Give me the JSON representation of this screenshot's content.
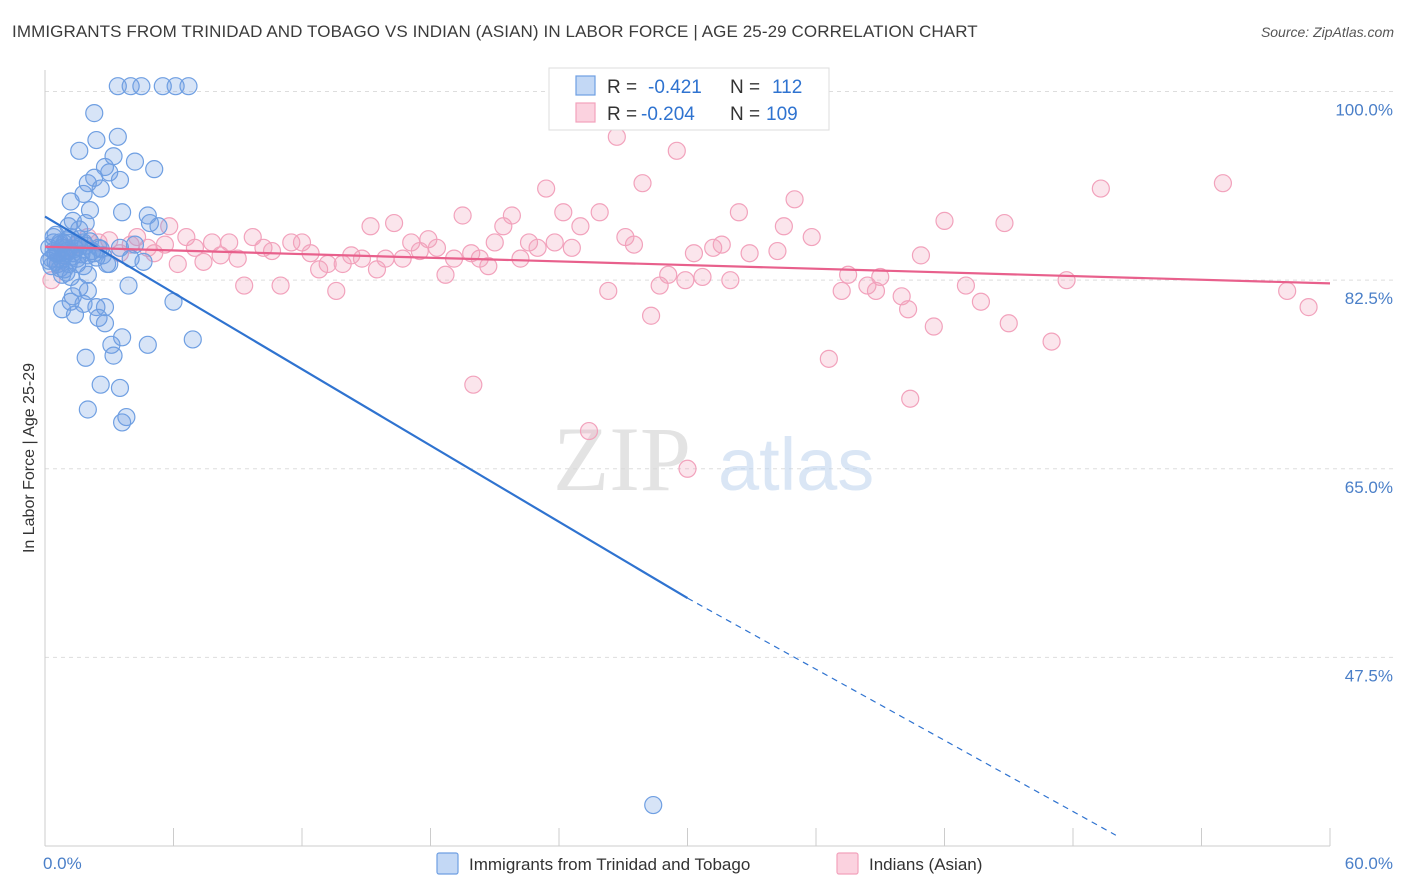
{
  "header": {
    "title": "IMMIGRANTS FROM TRINIDAD AND TOBAGO VS INDIAN (ASIAN) IN LABOR FORCE | AGE 25-29 CORRELATION CHART",
    "source": "Source: ZipAtlas.com"
  },
  "watermark": {
    "zip": "ZIP",
    "atlas": "atlas"
  },
  "stats": {
    "blue": {
      "r_label": "R =",
      "r_value": "-0.421",
      "n_label": "N =",
      "n_value": "112"
    },
    "pink": {
      "r_label": "R =",
      "r_value": "-0.204",
      "n_label": "N =",
      "n_value": "109"
    }
  },
  "chart_data": {
    "type": "scatter",
    "title": "IMMIGRANTS FROM TRINIDAD AND TOBAGO VS INDIAN (ASIAN) IN LABOR FORCE | AGE 25-29 CORRELATION CHART",
    "xlabel": "",
    "ylabel": "In Labor Force | Age 25-29",
    "xlim": [
      0,
      60
    ],
    "ylim": [
      30,
      102
    ],
    "x_tick_labels": [
      "0.0%",
      "60.0%"
    ],
    "y_ticks": [
      47.5,
      65.0,
      82.5,
      100.0
    ],
    "y_tick_labels": [
      "47.5%",
      "65.0%",
      "82.5%",
      "100.0%"
    ],
    "grid": "horizontal dashed",
    "legend": "bottom-center",
    "colors": {
      "blue": "#6f9fe2",
      "blue_line": "#2f73d0",
      "pink": "#f2a2bc",
      "pink_line": "#e8608c"
    },
    "series": [
      {
        "name": "Immigrants from Trinidad and Tobago",
        "color": "blue",
        "trend": {
          "x0": 0,
          "y0": 88.4,
          "x1": 30,
          "y1": 53.0,
          "dash_x1": 50,
          "dash_y1": 31.0
        },
        "points": [
          [
            0.2,
            85.5
          ],
          [
            0.3,
            84.5
          ],
          [
            0.4,
            86.0
          ],
          [
            0.5,
            85.0
          ],
          [
            0.6,
            84.0
          ],
          [
            0.7,
            86.0
          ],
          [
            0.8,
            85.5
          ],
          [
            0.9,
            84.8
          ],
          [
            1.0,
            85.2
          ],
          [
            1.1,
            84.0
          ],
          [
            0.3,
            83.8
          ],
          [
            0.5,
            84.2
          ],
          [
            0.7,
            85.8
          ],
          [
            0.9,
            83.5
          ],
          [
            1.2,
            86.5
          ],
          [
            1.3,
            85.0
          ],
          [
            1.5,
            84.5
          ],
          [
            1.6,
            85.6
          ],
          [
            1.8,
            86.0
          ],
          [
            2.0,
            84.8
          ],
          [
            2.2,
            85.2
          ],
          [
            2.4,
            84.6
          ],
          [
            0.4,
            86.5
          ],
          [
            0.6,
            85.1
          ],
          [
            0.8,
            84.4
          ],
          [
            1.0,
            86.2
          ],
          [
            1.4,
            85.4
          ],
          [
            1.7,
            84.9
          ],
          [
            1.9,
            85.7
          ],
          [
            2.1,
            86.1
          ],
          [
            2.3,
            85.0
          ],
          [
            0.2,
            84.3
          ],
          [
            0.5,
            86.7
          ],
          [
            0.9,
            85.9
          ],
          [
            1.1,
            85.3
          ],
          [
            1.3,
            84.7
          ],
          [
            1.6,
            86.3
          ],
          [
            2.5,
            85.5
          ],
          [
            2.7,
            84.8
          ],
          [
            0.7,
            83.6
          ],
          [
            1.0,
            83.2
          ],
          [
            1.2,
            82.8
          ],
          [
            1.5,
            84.0
          ],
          [
            2.0,
            83.0
          ],
          [
            0.8,
            83.0
          ],
          [
            1.1,
            87.5
          ],
          [
            1.3,
            88.0
          ],
          [
            1.6,
            87.2
          ],
          [
            1.9,
            87.8
          ],
          [
            2.1,
            89.0
          ],
          [
            1.2,
            89.8
          ],
          [
            1.8,
            90.5
          ],
          [
            2.0,
            91.5
          ],
          [
            2.3,
            92.0
          ],
          [
            2.6,
            91.0
          ],
          [
            3.0,
            92.5
          ],
          [
            3.5,
            91.8
          ],
          [
            2.8,
            93.0
          ],
          [
            3.2,
            94.0
          ],
          [
            1.6,
            94.5
          ],
          [
            2.4,
            95.5
          ],
          [
            4.2,
            93.5
          ],
          [
            5.1,
            92.8
          ],
          [
            3.4,
            95.8
          ],
          [
            2.3,
            98.0
          ],
          [
            3.4,
            100.5
          ],
          [
            4.0,
            100.5
          ],
          [
            4.5,
            100.5
          ],
          [
            5.5,
            100.5
          ],
          [
            6.1,
            100.5
          ],
          [
            6.7,
            100.5
          ],
          [
            3.6,
            88.8
          ],
          [
            4.8,
            88.5
          ],
          [
            4.9,
            87.8
          ],
          [
            5.3,
            87.5
          ],
          [
            3.5,
            85.5
          ],
          [
            4.0,
            84.5
          ],
          [
            4.2,
            85.8
          ],
          [
            4.6,
            84.2
          ],
          [
            3.0,
            84.0
          ],
          [
            1.3,
            81.0
          ],
          [
            1.2,
            80.5
          ],
          [
            1.6,
            81.8
          ],
          [
            2.0,
            81.5
          ],
          [
            2.4,
            80.0
          ],
          [
            2.8,
            80.0
          ],
          [
            3.9,
            82.0
          ],
          [
            2.5,
            79.0
          ],
          [
            2.8,
            78.5
          ],
          [
            1.8,
            80.3
          ],
          [
            0.8,
            79.8
          ],
          [
            1.4,
            79.3
          ],
          [
            3.6,
            77.2
          ],
          [
            4.8,
            76.5
          ],
          [
            6.9,
            77.0
          ],
          [
            3.1,
            76.5
          ],
          [
            3.2,
            75.5
          ],
          [
            1.9,
            75.3
          ],
          [
            6.0,
            80.5
          ],
          [
            2.6,
            72.8
          ],
          [
            3.5,
            72.5
          ],
          [
            2.0,
            70.5
          ],
          [
            3.8,
            69.8
          ],
          [
            3.6,
            69.3
          ],
          [
            1.0,
            85.0
          ],
          [
            2.9,
            84.0
          ],
          [
            0.6,
            84.9
          ],
          [
            1.5,
            85.9
          ],
          [
            2.6,
            85.4
          ],
          [
            28.4,
            33.8
          ],
          [
            1.8,
            83.8
          ],
          [
            0.4,
            85.2
          ]
        ]
      },
      {
        "name": "Indians (Asian)",
        "color": "pink",
        "trend": {
          "x0": 0,
          "y0": 85.6,
          "x1": 60,
          "y1": 82.2
        },
        "points": [
          [
            0.3,
            82.5
          ],
          [
            0.6,
            84.0
          ],
          [
            1.0,
            85.5
          ],
          [
            1.5,
            85.8
          ],
          [
            2.0,
            86.5
          ],
          [
            2.5,
            86.0
          ],
          [
            3.0,
            86.2
          ],
          [
            3.5,
            85.0
          ],
          [
            4.0,
            85.8
          ],
          [
            4.3,
            86.5
          ],
          [
            4.8,
            85.5
          ],
          [
            5.1,
            85.0
          ],
          [
            5.6,
            85.8
          ],
          [
            5.8,
            87.5
          ],
          [
            6.2,
            84.0
          ],
          [
            6.6,
            86.5
          ],
          [
            7.0,
            85.5
          ],
          [
            7.4,
            84.2
          ],
          [
            7.8,
            86.0
          ],
          [
            8.2,
            84.8
          ],
          [
            8.6,
            86.0
          ],
          [
            9.0,
            84.5
          ],
          [
            9.3,
            82.0
          ],
          [
            9.7,
            86.5
          ],
          [
            10.2,
            85.5
          ],
          [
            10.6,
            85.2
          ],
          [
            11.0,
            82.0
          ],
          [
            11.5,
            86.0
          ],
          [
            12.0,
            86.0
          ],
          [
            12.4,
            85.0
          ],
          [
            12.8,
            83.5
          ],
          [
            13.2,
            84.0
          ],
          [
            13.6,
            81.5
          ],
          [
            13.9,
            84.0
          ],
          [
            14.3,
            84.8
          ],
          [
            14.8,
            84.5
          ],
          [
            15.2,
            87.5
          ],
          [
            15.5,
            83.5
          ],
          [
            15.9,
            84.5
          ],
          [
            16.3,
            87.8
          ],
          [
            16.7,
            84.5
          ],
          [
            17.1,
            86.0
          ],
          [
            17.5,
            85.2
          ],
          [
            17.9,
            86.3
          ],
          [
            18.3,
            85.5
          ],
          [
            18.7,
            83.0
          ],
          [
            19.1,
            84.5
          ],
          [
            19.5,
            88.5
          ],
          [
            19.9,
            85.0
          ],
          [
            20.3,
            84.5
          ],
          [
            20.7,
            83.8
          ],
          [
            21.0,
            86.0
          ],
          [
            21.4,
            87.5
          ],
          [
            21.8,
            88.5
          ],
          [
            22.2,
            84.5
          ],
          [
            22.6,
            86.0
          ],
          [
            23.0,
            85.5
          ],
          [
            23.4,
            91.0
          ],
          [
            23.8,
            86.0
          ],
          [
            24.2,
            88.8
          ],
          [
            24.6,
            85.5
          ],
          [
            25.0,
            87.5
          ],
          [
            25.4,
            68.5
          ],
          [
            25.9,
            88.8
          ],
          [
            26.3,
            81.5
          ],
          [
            26.7,
            95.8
          ],
          [
            27.1,
            86.5
          ],
          [
            27.5,
            85.8
          ],
          [
            27.9,
            91.5
          ],
          [
            28.3,
            79.2
          ],
          [
            28.7,
            82.0
          ],
          [
            29.1,
            83.0
          ],
          [
            29.5,
            94.5
          ],
          [
            29.9,
            82.5
          ],
          [
            30.3,
            85.0
          ],
          [
            30.7,
            82.8
          ],
          [
            31.2,
            85.5
          ],
          [
            31.6,
            85.8
          ],
          [
            32.0,
            82.5
          ],
          [
            32.4,
            88.8
          ],
          [
            32.9,
            85.0
          ],
          [
            34.2,
            85.2
          ],
          [
            34.5,
            87.5
          ],
          [
            35.0,
            90.0
          ],
          [
            35.8,
            86.5
          ],
          [
            36.6,
            75.2
          ],
          [
            37.2,
            81.5
          ],
          [
            37.5,
            83.0
          ],
          [
            38.4,
            82.0
          ],
          [
            38.8,
            81.5
          ],
          [
            39.0,
            82.8
          ],
          [
            40.0,
            81.0
          ],
          [
            40.3,
            79.8
          ],
          [
            40.4,
            71.5
          ],
          [
            40.9,
            84.8
          ],
          [
            41.5,
            78.2
          ],
          [
            43.0,
            82.0
          ],
          [
            43.7,
            80.5
          ],
          [
            44.8,
            87.8
          ],
          [
            45.0,
            78.5
          ],
          [
            47.0,
            76.8
          ],
          [
            47.7,
            82.5
          ],
          [
            49.3,
            91.0
          ],
          [
            58.0,
            81.5
          ],
          [
            55.0,
            91.5
          ],
          [
            59.0,
            80.0
          ],
          [
            20.0,
            72.8
          ],
          [
            30.0,
            65.0
          ],
          [
            42.0,
            88.0
          ]
        ]
      }
    ]
  },
  "legend": [
    {
      "label": "Immigrants from Trinidad and Tobago",
      "color": "blue"
    },
    {
      "label": "Indians (Asian)",
      "color": "pink"
    }
  ]
}
